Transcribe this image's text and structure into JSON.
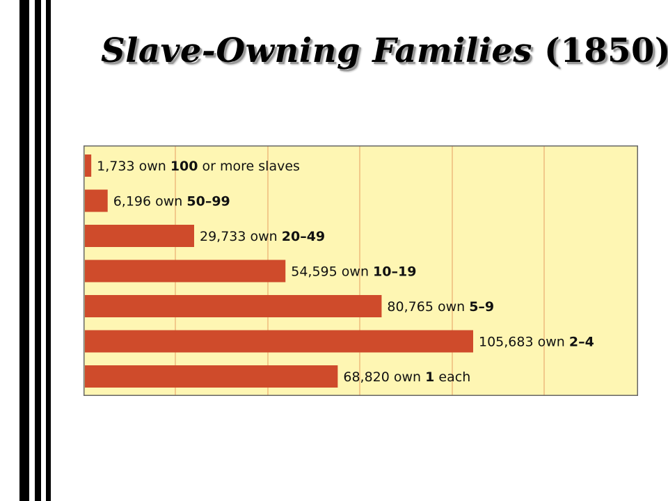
{
  "title": {
    "main": "Slave-Owning Families",
    "year": "(1850)"
  },
  "colors": {
    "background": "#ffffff",
    "stripes": "#000000",
    "plot_bg": "#fef6b3",
    "gridline": "#f2c98a",
    "bar": "#cf4b2b",
    "label": "#111111"
  },
  "chart_data": {
    "type": "bar",
    "orientation": "horizontal",
    "xlim": [
      0,
      120000
    ],
    "grid": true,
    "categories": [
      "100 or more slaves",
      "50–99",
      "20–49",
      "10–19",
      "5–9",
      "2–4",
      "1 each"
    ],
    "series": [
      {
        "values": [
          1733,
          6196,
          29733,
          54595,
          80765,
          105683,
          68820
        ]
      }
    ],
    "data_labels": [
      {
        "count": "1,733",
        "own": "own",
        "bold": "100",
        "suffix": "or more slaves"
      },
      {
        "count": "6,196",
        "own": "own",
        "bold": "50–99",
        "suffix": ""
      },
      {
        "count": "29,733",
        "own": "own",
        "bold": "20–49",
        "suffix": ""
      },
      {
        "count": "54,595",
        "own": "own",
        "bold": "10–19",
        "suffix": ""
      },
      {
        "count": "80,765",
        "own": "own",
        "bold": "5–9",
        "suffix": ""
      },
      {
        "count": "105,683",
        "own": "own",
        "bold": "2–4",
        "suffix": ""
      },
      {
        "count": "68,820",
        "own": "own",
        "bold": "1",
        "suffix": "each"
      }
    ]
  }
}
